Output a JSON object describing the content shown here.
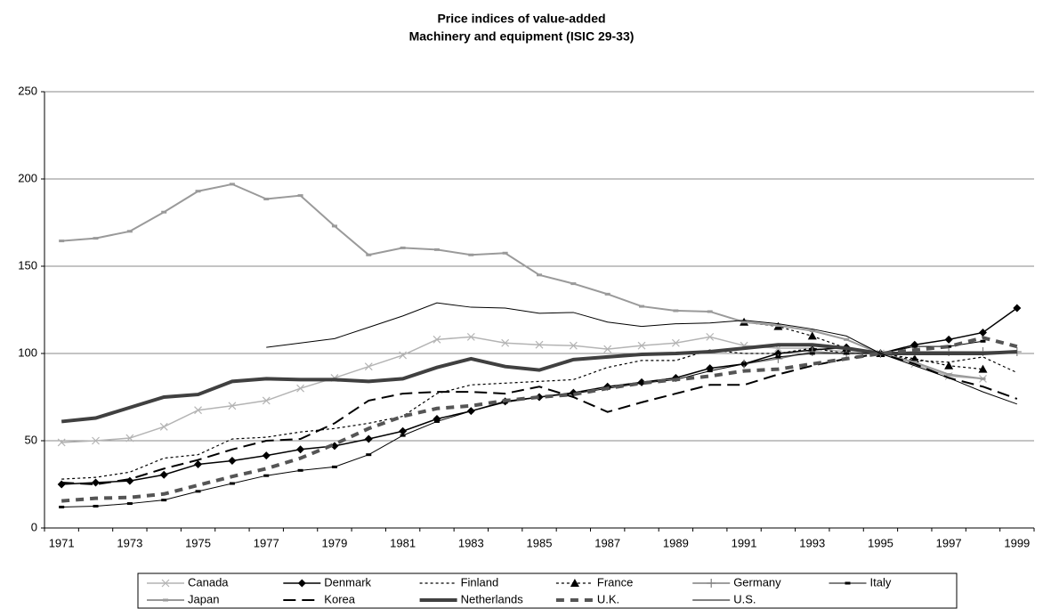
{
  "chart_data": {
    "type": "line",
    "title": "Price indices of value-added",
    "subtitle": "Machinery and equipment (ISIC 29-33)",
    "categories": [
      "1971",
      null,
      "1973",
      null,
      "1975",
      null,
      "1977",
      null,
      "1979",
      null,
      "1981",
      null,
      "1983",
      null,
      "1985",
      null,
      "1987",
      null,
      "1989",
      null,
      "1991",
      null,
      "1993",
      null,
      "1995",
      null,
      "1997",
      null,
      "1999"
    ],
    "ylim": [
      0,
      250
    ],
    "yticks": [
      0,
      50,
      100,
      150,
      200,
      250
    ],
    "grid": true,
    "series": [
      {
        "name": "Canada",
        "color": "#b4b4b4",
        "width": 1.5,
        "dash": "",
        "marker": "x",
        "values": [
          49,
          50,
          51.5,
          58,
          67.5,
          70,
          73,
          80,
          86,
          92.5,
          99,
          108,
          109.5,
          106,
          105,
          104.5,
          102.5,
          104.5,
          106,
          109.5,
          104.5,
          103,
          103,
          101,
          100,
          94,
          87,
          85.5,
          null
        ]
      },
      {
        "name": "Denmark",
        "color": "#000000",
        "width": 1.5,
        "dash": "",
        "marker": "diamond",
        "values": [
          25,
          26,
          27,
          30.5,
          36.5,
          38.5,
          41.5,
          45,
          47,
          51,
          55.5,
          62.5,
          67,
          72.5,
          75,
          77.5,
          81,
          83.5,
          86,
          91.5,
          94,
          100,
          102,
          103.5,
          100,
          105,
          108,
          112,
          126
        ]
      },
      {
        "name": "Finland",
        "color": "#000000",
        "width": 1.2,
        "dash": "3,3",
        "marker": "",
        "values": [
          28,
          29,
          32,
          40,
          42,
          51,
          52,
          55,
          57,
          60,
          64,
          77,
          82,
          83,
          84,
          85,
          92,
          96,
          96,
          102,
          100,
          100,
          103,
          100,
          100,
          96,
          95,
          98,
          89
        ]
      },
      {
        "name": "France",
        "color": "#000000",
        "width": 1.2,
        "dash": "3,3",
        "marker": "triangle",
        "values": [
          null,
          null,
          null,
          null,
          null,
          null,
          null,
          null,
          null,
          null,
          null,
          null,
          null,
          null,
          null,
          null,
          null,
          null,
          null,
          null,
          118,
          115.5,
          110,
          103,
          100,
          97,
          93,
          91,
          null
        ]
      },
      {
        "name": "Germany",
        "color": "#7f7f7f",
        "width": 1.5,
        "dash": "",
        "marker": "plus",
        "values": [
          null,
          null,
          null,
          null,
          null,
          null,
          null,
          null,
          null,
          null,
          null,
          null,
          null,
          null,
          null,
          null,
          null,
          null,
          null,
          null,
          94,
          97,
          101,
          100,
          100,
          101,
          101,
          101,
          101
        ]
      },
      {
        "name": "Italy",
        "color": "#000000",
        "width": 1,
        "dash": "",
        "marker": "dash",
        "values": [
          12,
          12.5,
          14,
          16,
          21,
          25.5,
          30,
          33,
          35,
          42,
          53,
          61,
          67,
          72,
          75,
          77,
          80,
          83,
          85,
          90,
          94,
          98,
          100,
          100,
          100,
          104,
          104,
          107,
          null
        ]
      },
      {
        "name": "Japan",
        "color": "#9a9a9a",
        "width": 2,
        "dash": "",
        "marker": "dash",
        "values": [
          164.5,
          166,
          170,
          181,
          193,
          197,
          188.5,
          190.5,
          173,
          156.5,
          160.5,
          159.5,
          156.5,
          157.5,
          145,
          140,
          134,
          127,
          124.5,
          124,
          118,
          116,
          113,
          108,
          100,
          95,
          88,
          85.5,
          null
        ]
      },
      {
        "name": "Korea",
        "color": "#000000",
        "width": 2,
        "dash": "14,7",
        "marker": "",
        "values": [
          26,
          25,
          28,
          34,
          39,
          45,
          50,
          51,
          60,
          73,
          77,
          78,
          78,
          77,
          81,
          75,
          66.5,
          72,
          77,
          82,
          82,
          88,
          93,
          97,
          100,
          94,
          86,
          81,
          74
        ]
      },
      {
        "name": "Netherlands",
        "color": "#404040",
        "width": 4,
        "dash": "",
        "marker": "",
        "values": [
          61,
          63,
          69,
          75,
          76.5,
          84,
          85.5,
          85,
          85,
          84,
          85.5,
          92,
          97,
          92.5,
          90.5,
          96.5,
          98,
          99.5,
          100,
          101,
          103,
          105,
          105,
          103,
          100,
          100,
          100,
          100,
          101
        ]
      },
      {
        "name": "U.K.",
        "color": "#555555",
        "width": 4,
        "dash": "9,7",
        "marker": "",
        "values": [
          15.5,
          17,
          17.5,
          19.5,
          24.5,
          29.5,
          34,
          40,
          48,
          57,
          64,
          68.5,
          70,
          73,
          75,
          76.5,
          80,
          83,
          85,
          87,
          90,
          91,
          94,
          97,
          100,
          102,
          104,
          109,
          104
        ]
      },
      {
        "name": "U.S.",
        "color": "#000000",
        "width": 1,
        "dash": "",
        "marker": "",
        "values": [
          null,
          null,
          null,
          null,
          null,
          null,
          103.5,
          106,
          108.5,
          115,
          121.5,
          129,
          126.5,
          126,
          123,
          123.5,
          118,
          115.5,
          117,
          117.5,
          119,
          117,
          114,
          110,
          100,
          93,
          86,
          78,
          71
        ]
      }
    ]
  }
}
